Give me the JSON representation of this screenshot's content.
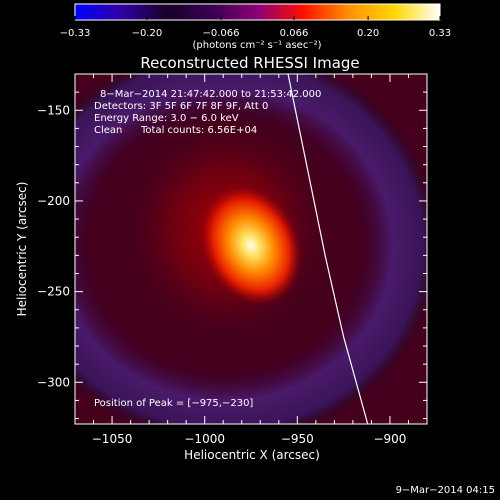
{
  "chart_data": {
    "type": "heatmap",
    "title": "Reconstructed RHESSI Image",
    "xlabel": "Heliocentric X (arcsec)",
    "ylabel": "Heliocentric Y (arcsec)",
    "xlim": [
      -1070,
      -880
    ],
    "ylim": [
      -323,
      -130
    ],
    "x_ticks": [
      -1050,
      -1000,
      -950,
      -900
    ],
    "y_ticks": [
      -150,
      -200,
      -250,
      -300
    ],
    "x_tick_labels": [
      "−1050",
      "−1000",
      "−950",
      "−900"
    ],
    "y_tick_labels": [
      "−150",
      "−200",
      "−250",
      "−300"
    ],
    "colorbar": {
      "range": [
        -0.33,
        0.33
      ],
      "ticks": [
        -0.33,
        -0.2,
        -0.066,
        0.066,
        0.2,
        0.33
      ],
      "tick_labels": [
        "−0.33",
        "−0.20",
        "−0.066",
        "0.066",
        "0.20",
        "0.33"
      ],
      "units_label": "(photons cm⁻² s⁻¹ asec⁻²)",
      "colors": [
        "#0000ff",
        "#3000a8",
        "#180028",
        "#380050",
        "#8c0078",
        "#ff1000",
        "#ff9000",
        "#ffd700",
        "#ffffff"
      ]
    },
    "annotations": {
      "time_range": "8−Mar−2014 21:47:42.000 to 21:53:42.000",
      "detectors": "Detectors: 3F 5F 6F 7F 8F 9F, Att 0",
      "energy_range": "Energy Range: 3.0 − 6.0 keV",
      "clean_label": "Clean",
      "total_counts": "Total counts: 6.56E+04",
      "peak_position": "Position of Peak = [−975,−230]"
    },
    "peak": {
      "x": -975,
      "y": -230
    },
    "limb_curve": [
      [
        -955,
        -130
      ],
      [
        -945,
        -180
      ],
      [
        -935,
        -230
      ],
      [
        -925,
        -275
      ],
      [
        -912,
        -323
      ]
    ],
    "colors": {
      "background": "#000000",
      "text": "#ffffff",
      "limb_line": "#ffffff"
    }
  },
  "footer": {
    "date": "9−Mar−2014 04:15"
  }
}
